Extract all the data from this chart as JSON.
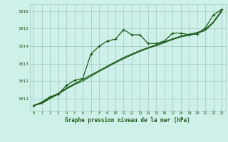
{
  "x": [
    0,
    1,
    2,
    3,
    4,
    5,
    6,
    7,
    8,
    9,
    10,
    11,
    12,
    13,
    14,
    15,
    16,
    17,
    18,
    19,
    20,
    21,
    22,
    23
  ],
  "y_marked": [
    1010.6,
    1010.8,
    1011.1,
    1011.25,
    1011.75,
    1012.05,
    1012.15,
    1013.55,
    1014.0,
    1014.3,
    1014.4,
    1014.95,
    1014.65,
    1014.65,
    1014.15,
    1014.15,
    1014.3,
    1014.75,
    1014.75,
    1014.65,
    1014.7,
    1015.05,
    1015.8,
    1016.1
  ],
  "y_line1": [
    1010.6,
    1010.75,
    1011.05,
    1011.3,
    1011.6,
    1011.85,
    1012.1,
    1012.35,
    1012.6,
    1012.85,
    1013.1,
    1013.35,
    1013.55,
    1013.75,
    1013.92,
    1014.08,
    1014.25,
    1014.42,
    1014.58,
    1014.68,
    1014.78,
    1014.95,
    1015.4,
    1016.05
  ],
  "y_line2": [
    1010.6,
    1010.72,
    1011.0,
    1011.25,
    1011.55,
    1011.8,
    1012.0,
    1012.28,
    1012.55,
    1012.8,
    1013.05,
    1013.28,
    1013.5,
    1013.7,
    1013.88,
    1014.03,
    1014.2,
    1014.38,
    1014.53,
    1014.62,
    1014.73,
    1014.9,
    1015.35,
    1015.98
  ],
  "bg_color": "#cff0e8",
  "grid_color": "#99ccbb",
  "line_color": "#1a5c1a",
  "ylabel_vals": [
    1011,
    1012,
    1013,
    1014,
    1015,
    1016
  ],
  "xlabel_label": "Graphe pression niveau de la mer (hPa)",
  "ylim": [
    1010.3,
    1016.4
  ],
  "xlim": [
    -0.5,
    23.5
  ],
  "figsize": [
    3.2,
    2.0
  ],
  "dpi": 100
}
